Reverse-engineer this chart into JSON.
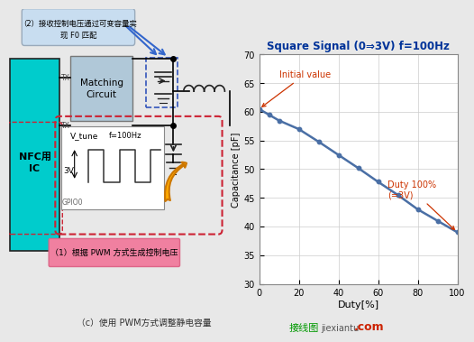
{
  "title": "Square Signal (0⇒3V) f=100Hz",
  "xlabel": "Duty[%]",
  "ylabel": "Capacitance [pF]",
  "xlim": [
    0,
    100
  ],
  "ylim": [
    30,
    70
  ],
  "yticks": [
    30,
    35,
    40,
    45,
    50,
    55,
    60,
    65,
    70
  ],
  "xticks": [
    0,
    20,
    40,
    60,
    80,
    100
  ],
  "duty_x": [
    0,
    5,
    10,
    20,
    30,
    40,
    50,
    60,
    70,
    80,
    90,
    100
  ],
  "capacitance_y": [
    60.5,
    59.5,
    58.5,
    57.0,
    54.8,
    52.5,
    50.2,
    47.8,
    45.5,
    43.0,
    41.0,
    39.0
  ],
  "line_color": "#4a6fa5",
  "marker_color": "#4a6fa5",
  "initial_label": "Initial value",
  "duty100_label": "Duty 100%\n(=3V)",
  "annotation_color": "#cc3300",
  "plot_bg": "#ffffff",
  "grid_color": "#cccccc",
  "title_color": "#003399",
  "label_color": "#000000",
  "circuit_bg": "#f0f0f0",
  "nfc_bg": "#00cccc",
  "matching_bg": "#b0c8d8",
  "pwm_label_bg": "#f080a0",
  "callout_bg": "#c8ddf0",
  "fig_bg": "#e8e8e8",
  "nfc_text": "NFC用\nIC",
  "matching_text": "Matching\nCircuit",
  "pwm_text": "（1）根据 PWM 方式生成控制电压",
  "callout_text_line1": "（2）接收控制电压通过可变容量实",
  "callout_text_line2": "现 F0 匹配",
  "subtitle": "（c）使用 PWM方式调整静电容量",
  "watermark1": "接线图",
  "watermark2": "jiexiantu",
  "watermark3": ".com",
  "vtune_text": "V_tune",
  "freq_text": "f=100Hz",
  "gpio_text": "GPIO0",
  "voltage_text": "3V",
  "tx_text": "TX"
}
